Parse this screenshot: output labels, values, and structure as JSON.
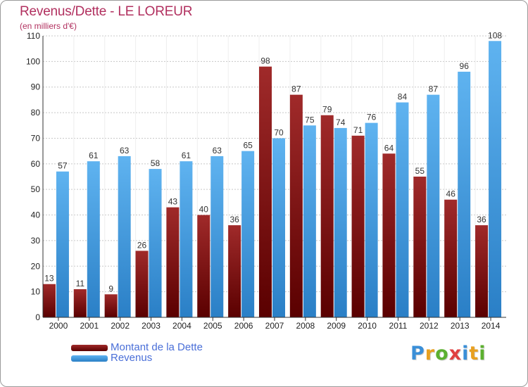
{
  "title": "Revenus/Dette - LE LOREUR",
  "subtitle": "(en milliers d'€)",
  "colors": {
    "dette": "#7a1515",
    "revenus": "#3f9be0",
    "title": "#b1305f",
    "legend_text": "#4a6fd8"
  },
  "logo": {
    "text": "Proxiti",
    "letter_colors": [
      "#3a8fd8",
      "#e8a020",
      "#5cb030",
      "#e04040",
      "#3a8fd8",
      "#e8a020",
      "#5cb030"
    ]
  },
  "chart_data": {
    "type": "bar",
    "title": "Revenus/Dette - LE LOREUR",
    "subtitle": "(en milliers d'€)",
    "categories": [
      "2000",
      "2001",
      "2002",
      "2003",
      "2004",
      "2005",
      "2006",
      "2007",
      "2008",
      "2009",
      "2010",
      "2011",
      "2012",
      "2013",
      "2014"
    ],
    "series": [
      {
        "name": "Montant de la Dette",
        "values": [
          13,
          11,
          9,
          26,
          43,
          40,
          36,
          98,
          87,
          79,
          71,
          64,
          55,
          46,
          36
        ]
      },
      {
        "name": "Revenus",
        "values": [
          57,
          61,
          63,
          58,
          61,
          63,
          65,
          70,
          75,
          74,
          76,
          84,
          87,
          96,
          108
        ]
      }
    ],
    "ylim": [
      0,
      110
    ],
    "yticks": [
      0,
      10,
      20,
      30,
      40,
      50,
      60,
      70,
      80,
      90,
      100,
      110
    ],
    "grid": true,
    "legend_position": "bottom-left"
  }
}
